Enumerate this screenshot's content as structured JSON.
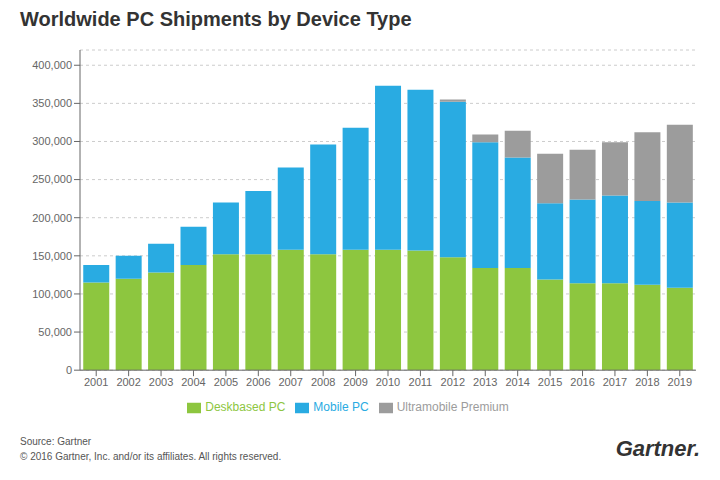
{
  "chart_data": {
    "type": "bar",
    "title": "Worldwide PC Shipments by Device Type",
    "categories": [
      "2001",
      "2002",
      "2003",
      "2004",
      "2005",
      "2006",
      "2007",
      "2008",
      "2009",
      "2010",
      "2011",
      "2012",
      "2013",
      "2014",
      "2015",
      "2016",
      "2017",
      "2018",
      "2019"
    ],
    "series": [
      {
        "name": "Deskbased PC",
        "color": "#8dc63f",
        "values": [
          115000,
          120000,
          128000,
          138000,
          152000,
          152000,
          158000,
          152000,
          158000,
          158000,
          157000,
          148000,
          134000,
          134000,
          119000,
          114000,
          114000,
          112000,
          108000
        ]
      },
      {
        "name": "Mobile PC",
        "color": "#29abe2",
        "values": [
          23000,
          30000,
          38000,
          50000,
          68000,
          83000,
          108000,
          144000,
          160000,
          215000,
          211000,
          204000,
          165000,
          145000,
          100000,
          110000,
          115000,
          110000,
          112000
        ]
      },
      {
        "name": "Ultramobile Premium",
        "color": "#9c9c9c",
        "values": [
          0,
          0,
          0,
          0,
          0,
          0,
          0,
          0,
          0,
          0,
          0,
          3000,
          10000,
          35000,
          65000,
          65000,
          70000,
          90000,
          102000
        ]
      }
    ],
    "stacked": true,
    "ylim": [
      0,
      420000
    ],
    "yticks": [
      0,
      {
        "value": 50000,
        "label": "50,000"
      },
      {
        "value": 100000,
        "label": "100,000"
      },
      {
        "value": 150000,
        "label": "150,000"
      },
      {
        "value": 200000,
        "label": "200,000"
      },
      {
        "value": 250000,
        "label": "250,000"
      },
      {
        "value": 300000,
        "label": "300,000"
      },
      {
        "value": 350000,
        "label": "350,000"
      },
      {
        "value": 400000,
        "label": "400,000"
      }
    ],
    "grid": true,
    "legend": "bottom",
    "annotations": [
      "Source: Gartner",
      "© 2016 Gartner, Inc. and/or its affiliates. All rights reserved.",
      "Gartner."
    ]
  }
}
